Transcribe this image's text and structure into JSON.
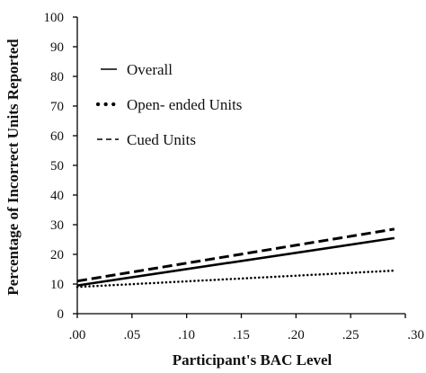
{
  "chart_data": {
    "type": "line",
    "title": "",
    "xlabel": "Participant's BAC Level",
    "ylabel": "Percentage of Incorrect Units Reported",
    "xlim": [
      0,
      0.3
    ],
    "ylim": [
      0,
      100
    ],
    "x_ticks": [
      0,
      0.05,
      0.1,
      0.15,
      0.2,
      0.25,
      0.3
    ],
    "x_tick_labels": [
      ".00",
      ".05",
      ".10",
      ".15",
      ".20",
      ".25",
      ".30"
    ],
    "y_ticks": [
      0,
      10,
      20,
      30,
      40,
      50,
      60,
      70,
      80,
      90,
      100
    ],
    "y_tick_labels": [
      "0",
      "10",
      "20",
      "30",
      "40",
      "50",
      "60",
      "70",
      "80",
      "90",
      "100"
    ],
    "grid": false,
    "legend_position": "top-left",
    "series": [
      {
        "name": "Overall",
        "style": "solid",
        "x": [
          0,
          0.29
        ],
        "y": [
          9.5,
          25.5
        ]
      },
      {
        "name": "Open- ended Units",
        "style": "dotted",
        "x": [
          0,
          0.29
        ],
        "y": [
          9,
          14.5
        ]
      },
      {
        "name": "Cued Units",
        "style": "dashed",
        "x": [
          0,
          0.29
        ],
        "y": [
          11,
          28.5
        ]
      }
    ],
    "line_color": "#000000"
  }
}
